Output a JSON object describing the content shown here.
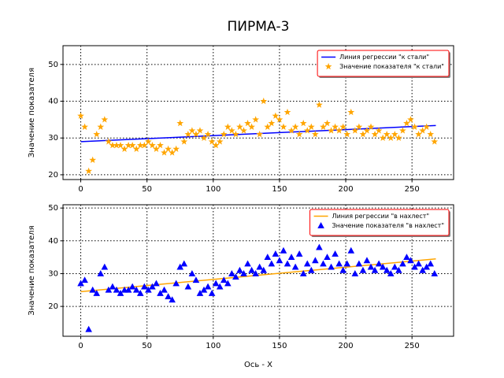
{
  "title": "ПИРМА-3",
  "chart_data": [
    {
      "type": "scatter",
      "ylabel": "Значение показателя",
      "xlim": [
        -13.4,
        281.4
      ],
      "xticks": [
        0,
        50,
        100,
        150,
        200,
        250
      ],
      "ylim": [
        18.7,
        55.1
      ],
      "yticks": [
        20,
        30,
        40,
        50
      ],
      "grid": true,
      "legend": "upper right",
      "series": [
        {
          "name": "Линия регрессии \"к стали\"",
          "type": "line",
          "color": "#0000ff",
          "x": [
            0,
            268
          ],
          "values": [
            29,
            33.4
          ]
        },
        {
          "name": "Значение показателя \"к стали\"",
          "type": "scatter",
          "marker": "star",
          "color": "#ffa500",
          "x": [
            0,
            3,
            6,
            9,
            12,
            15,
            18,
            21,
            24,
            27,
            30,
            33,
            36,
            39,
            42,
            45,
            48,
            51,
            54,
            57,
            60,
            63,
            66,
            69,
            72,
            75,
            78,
            81,
            84,
            87,
            90,
            93,
            96,
            99,
            102,
            105,
            108,
            111,
            114,
            117,
            120,
            123,
            126,
            129,
            132,
            135,
            138,
            141,
            144,
            147,
            150,
            153,
            156,
            159,
            162,
            165,
            168,
            171,
            174,
            177,
            180,
            183,
            186,
            189,
            192,
            195,
            198,
            201,
            204,
            207,
            210,
            213,
            216,
            219,
            222,
            225,
            228,
            231,
            234,
            237,
            240,
            243,
            246,
            249,
            252,
            255,
            258,
            261,
            264,
            267
          ],
          "values": [
            36,
            33,
            21,
            24,
            31,
            33,
            35,
            29,
            28,
            28,
            28,
            27,
            28,
            28,
            27,
            28,
            28,
            29,
            28,
            27,
            28,
            26,
            27,
            26,
            27,
            34,
            29,
            31,
            32,
            31,
            32,
            30,
            31,
            29,
            28,
            29,
            31,
            33,
            32,
            31,
            33,
            32,
            34,
            33,
            35,
            31,
            40,
            33,
            34,
            36,
            35,
            33,
            37,
            32,
            33,
            31,
            34,
            32,
            33,
            31,
            39,
            33,
            34,
            32,
            33,
            32,
            33,
            31,
            37,
            32,
            33,
            31,
            32,
            33,
            31,
            32,
            30,
            31,
            30,
            31,
            30,
            32,
            34,
            35,
            33,
            31,
            32,
            33,
            31,
            29
          ]
        }
      ]
    },
    {
      "type": "scatter",
      "ylabel": "Значение показателя",
      "xlabel": "Ось - X",
      "xlim": [
        -13.4,
        281.4
      ],
      "xticks": [
        0,
        50,
        100,
        150,
        200,
        250
      ],
      "ylim": [
        10.9,
        51
      ],
      "yticks": [
        20,
        30,
        40,
        50
      ],
      "grid": true,
      "legend": "upper right",
      "series": [
        {
          "name": "Линия регрессии \"в нахлест\"",
          "type": "line",
          "color": "#ffa500",
          "x": [
            0,
            268
          ],
          "values": [
            24.5,
            34.5
          ]
        },
        {
          "name": "Значение показателя \"в нахлест\"",
          "type": "scatter",
          "marker": "triangle",
          "color": "#0000ff",
          "x": [
            0,
            3,
            6,
            9,
            12,
            15,
            18,
            21,
            24,
            27,
            30,
            33,
            36,
            39,
            42,
            45,
            48,
            51,
            54,
            57,
            60,
            63,
            66,
            69,
            72,
            75,
            78,
            81,
            84,
            87,
            90,
            93,
            96,
            99,
            102,
            105,
            108,
            111,
            114,
            117,
            120,
            123,
            126,
            129,
            132,
            135,
            138,
            141,
            144,
            147,
            150,
            153,
            156,
            159,
            162,
            165,
            168,
            171,
            174,
            177,
            180,
            183,
            186,
            189,
            192,
            195,
            198,
            201,
            204,
            207,
            210,
            213,
            216,
            219,
            222,
            225,
            228,
            231,
            234,
            237,
            240,
            243,
            246,
            249,
            252,
            255,
            258,
            261,
            264,
            267
          ],
          "values": [
            27,
            28,
            13,
            25,
            24,
            30,
            32,
            25,
            26,
            25,
            24,
            25,
            25,
            26,
            25,
            24,
            26,
            25,
            26,
            27,
            24,
            25,
            23,
            22,
            27,
            32,
            33,
            26,
            30,
            28,
            24,
            25,
            26,
            24,
            27,
            26,
            28,
            27,
            30,
            29,
            31,
            30,
            33,
            31,
            30,
            32,
            31,
            35,
            33,
            36,
            34,
            37,
            33,
            35,
            32,
            36,
            30,
            33,
            31,
            34,
            38,
            33,
            35,
            32,
            36,
            33,
            31,
            33,
            37,
            30,
            33,
            31,
            34,
            32,
            31,
            33,
            32,
            31,
            30,
            32,
            31,
            33,
            35,
            34,
            32,
            33,
            31,
            32,
            33,
            30
          ]
        }
      ]
    }
  ]
}
